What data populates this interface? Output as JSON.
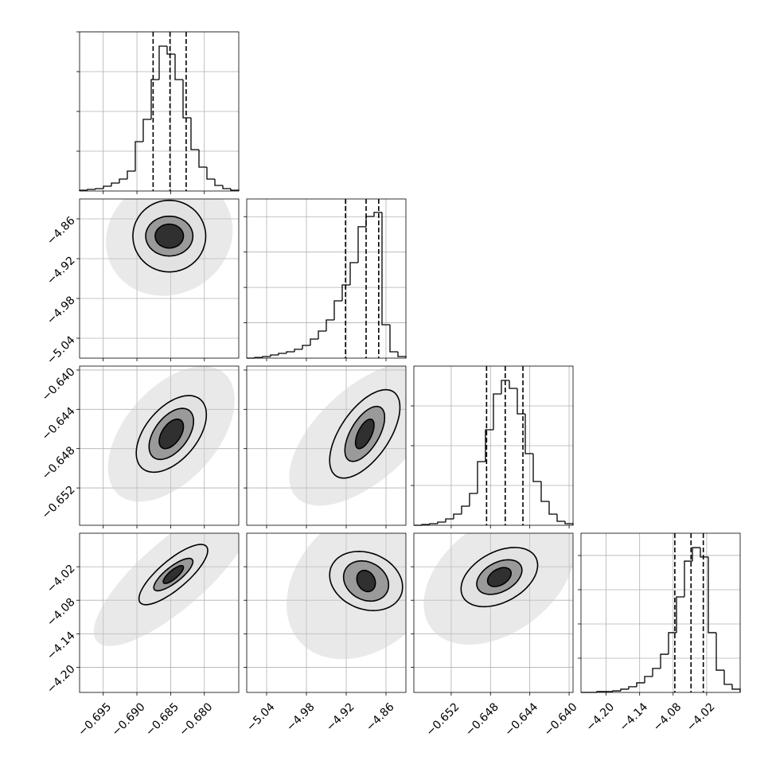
{
  "chart_data": {
    "type": "corner",
    "grid": true,
    "hist_color": "#000000",
    "level_fills": [
      "#cfcfcf",
      "#e2e2e2",
      "#9a9a9a",
      "#303030"
    ],
    "level_opacity": [
      0.45,
      1,
      1,
      1
    ],
    "parameters": [
      {
        "lim": [
          -0.6985,
          -0.6749
        ],
        "ticks": [
          {
            "value": -0.695,
            "label": "−0.695"
          },
          {
            "value": -0.69,
            "label": "−0.690"
          },
          {
            "value": -0.685,
            "label": "−0.685"
          },
          {
            "value": -0.68,
            "label": "−0.680"
          }
        ],
        "counts": [
          4,
          8,
          12,
          24,
          40,
          60,
          100,
          248,
          360,
          560,
          728,
          688,
          560,
          368,
          208,
          120,
          60,
          28,
          12,
          4
        ],
        "count_lim": [
          0,
          800
        ],
        "count_ticks": [
          200,
          400,
          600,
          800
        ],
        "quantiles": [
          -0.6876,
          -0.6851,
          -0.6827
        ]
      },
      {
        "lim": [
          -5.07,
          -4.83
        ],
        "ticks": [
          {
            "value": -5.04,
            "label": "−5.04"
          },
          {
            "value": -4.98,
            "label": "−4.98"
          },
          {
            "value": -4.92,
            "label": "−4.92"
          },
          {
            "value": -4.86,
            "label": "−4.86"
          }
        ],
        "counts": [
          0,
          4,
          9,
          18,
          27,
          36,
          50,
          72,
          108,
          153,
          216,
          324,
          414,
          540,
          743,
          801,
          824,
          189,
          36,
          9
        ],
        "count_lim": [
          0,
          900
        ],
        "count_ticks": [
          200,
          400,
          600,
          800
        ],
        "quantiles": [
          -4.921,
          -4.89,
          -4.871
        ]
      },
      {
        "lim": [
          -0.6558,
          -0.6396
        ],
        "ticks": [
          {
            "value": -0.652,
            "label": "−0.652"
          },
          {
            "value": -0.648,
            "label": "−0.648"
          },
          {
            "value": -0.644,
            "label": "−0.644"
          },
          {
            "value": -0.64,
            "label": "−0.640"
          }
        ],
        "counts": [
          0,
          4,
          8,
          16,
          32,
          56,
          96,
          160,
          320,
          480,
          660,
          728,
          688,
          560,
          360,
          220,
          120,
          56,
          20,
          8
        ],
        "count_lim": [
          0,
          800
        ],
        "count_ticks": [
          200,
          400,
          600
        ],
        "quantiles": [
          -0.6484,
          -0.6465,
          -0.6447
        ]
      },
      {
        "lim": [
          -4.245,
          -3.96
        ],
        "ticks": [
          {
            "value": -4.2,
            "label": "−4.20"
          },
          {
            "value": -4.14,
            "label": "−4.14"
          },
          {
            "value": -4.08,
            "label": "−4.08"
          },
          {
            "value": -4.02,
            "label": "−4.02"
          }
        ],
        "counts": [
          0,
          0,
          5,
          5,
          9,
          19,
          33,
          56,
          93,
          140,
          223,
          349,
          558,
          767,
          846,
          791,
          349,
          130,
          47,
          19
        ],
        "count_lim": [
          0,
          930
        ],
        "count_ticks": [
          200,
          400,
          600,
          800
        ],
        "quantiles": [
          -4.077,
          -4.048,
          -4.026
        ]
      }
    ],
    "pairs": [
      {
        "x": 0,
        "y": 1,
        "center": [
          -0.6852,
          -4.886
        ],
        "levels": [
          {
            "x_half": 0.0094,
            "y_half": 0.09,
            "rho": 0.1
          },
          {
            "x_half": 0.0054,
            "y_half": 0.054,
            "rho": 0
          },
          {
            "x_half": 0.0035,
            "y_half": 0.03,
            "rho": 0
          },
          {
            "x_half": 0.0021,
            "y_half": 0.018,
            "rho": 0
          }
        ]
      },
      {
        "x": 0,
        "y": 2,
        "center": [
          -0.6849,
          -0.6465
        ],
        "levels": [
          {
            "x_half": 0.0094,
            "y_half": 0.0069,
            "rho": 0.5
          },
          {
            "x_half": 0.0052,
            "y_half": 0.0039,
            "rho": 0.5
          },
          {
            "x_half": 0.0033,
            "y_half": 0.0026,
            "rho": 0.5
          },
          {
            "x_half": 0.0018,
            "y_half": 0.0015,
            "rho": 0.5
          }
        ]
      },
      {
        "x": 0,
        "y": 3,
        "center": [
          -0.6846,
          -4.034
        ],
        "levels": [
          {
            "x_half": 0.0118,
            "y_half": 0.128,
            "rho": 0.8
          },
          {
            "x_half": 0.0051,
            "y_half": 0.054,
            "rho": 0.8
          },
          {
            "x_half": 0.0029,
            "y_half": 0.029,
            "rho": 0.8
          },
          {
            "x_half": 0.0015,
            "y_half": 0.016,
            "rho": 0.8
          }
        ]
      },
      {
        "x": 1,
        "y": 2,
        "center": [
          -4.892,
          -0.6465
        ],
        "levels": [
          {
            "x_half": 0.114,
            "y_half": 0.0073,
            "rho": 0.6
          },
          {
            "x_half": 0.053,
            "y_half": 0.0045,
            "rho": 0.6
          },
          {
            "x_half": 0.03,
            "y_half": 0.0028,
            "rho": 0.6
          },
          {
            "x_half": 0.014,
            "y_half": 0.0015,
            "rho": 0.6
          }
        ]
      },
      {
        "x": 1,
        "y": 3,
        "center": [
          -4.89,
          -4.0455
        ],
        "levels": [
          {
            "x_half": 0.12,
            "y_half": 0.14,
            "rho": 0.3
          },
          {
            "x_half": 0.055,
            "y_half": 0.053,
            "rho": -0.2
          },
          {
            "x_half": 0.034,
            "y_half": 0.036,
            "rho": -0.2
          },
          {
            "x_half": 0.014,
            "y_half": 0.019,
            "rho": -0.2
          }
        ]
      },
      {
        "x": 2,
        "y": 3,
        "center": [
          -0.6471,
          -4.0385
        ],
        "levels": [
          {
            "x_half": 0.0077,
            "y_half": 0.121,
            "rho": 0.4
          },
          {
            "x_half": 0.0039,
            "y_half": 0.053,
            "rho": 0.4
          },
          {
            "x_half": 0.0023,
            "y_half": 0.031,
            "rho": 0.4
          },
          {
            "x_half": 0.0012,
            "y_half": 0.017,
            "rho": 0.4
          }
        ]
      }
    ]
  }
}
